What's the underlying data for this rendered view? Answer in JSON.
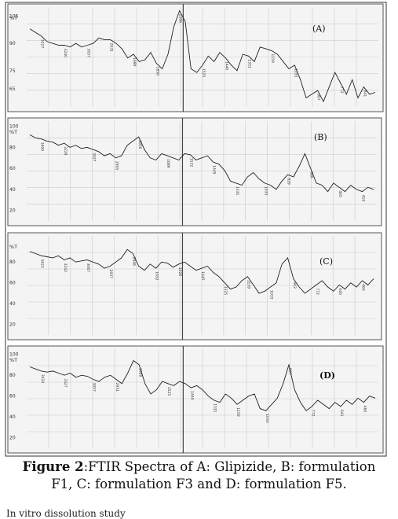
{
  "chart_data": [
    {
      "type": "line",
      "panel_label": "(A)",
      "ylabel": "%T",
      "y_tick_labels": [
        "105",
        "90",
        "75",
        "65"
      ],
      "y_ticks": [
        105,
        90,
        75,
        65
      ],
      "ylim": [
        55,
        110
      ],
      "x": [
        0,
        1,
        2,
        3,
        4,
        5,
        6,
        7,
        8,
        9,
        10,
        11,
        12,
        13,
        14,
        15,
        16,
        17,
        18,
        19,
        20,
        21,
        22,
        23,
        24,
        25,
        26,
        27,
        28,
        29,
        30,
        31,
        32,
        33,
        34,
        35,
        36,
        37,
        38,
        39,
        40,
        41,
        42,
        43,
        44,
        45,
        46,
        47,
        48,
        49,
        50,
        51,
        52,
        53,
        54,
        55,
        56,
        57,
        58,
        59,
        60
      ],
      "values": [
        98,
        96,
        94,
        91,
        90,
        89,
        89,
        88,
        90,
        88,
        89,
        90,
        93,
        92,
        92,
        90,
        87,
        82,
        84,
        80,
        81,
        85,
        79,
        76,
        84,
        99,
        108,
        102,
        76,
        74,
        78,
        83,
        80,
        85,
        82,
        78,
        75,
        84,
        83,
        80,
        88,
        87,
        86,
        84,
        80,
        76,
        78,
        70,
        60,
        62,
        64,
        58,
        66,
        74,
        68,
        62,
        70,
        60,
        66,
        62,
        63
      ],
      "grid": true,
      "peak_labels": [
        "3327",
        "3240",
        "3057",
        "2931",
        "1689",
        "1650",
        "1586",
        "1525",
        "1440",
        "1331",
        "1159",
        "1033",
        "907",
        "772",
        "641"
      ]
    },
    {
      "type": "line",
      "panel_label": "(B)",
      "ylabel": "%T",
      "y_tick_labels": [
        "100",
        "80",
        "60",
        "40",
        "20"
      ],
      "y_ticks": [
        100,
        80,
        60,
        40,
        20
      ],
      "ylim": [
        10,
        105
      ],
      "x": [
        0,
        1,
        2,
        3,
        4,
        5,
        6,
        7,
        8,
        9,
        10,
        11,
        12,
        13,
        14,
        15,
        16,
        17,
        18,
        19,
        20,
        21,
        22,
        23,
        24,
        25,
        26,
        27,
        28,
        29,
        30,
        31,
        32,
        33,
        34,
        35,
        36,
        37,
        38,
        39,
        40,
        41,
        42,
        43,
        44,
        45,
        46,
        47,
        48,
        49,
        50,
        51,
        52,
        53,
        54,
        55,
        56,
        57,
        58,
        59,
        60
      ],
      "values": [
        92,
        89,
        88,
        86,
        85,
        82,
        84,
        80,
        82,
        79,
        80,
        78,
        76,
        72,
        74,
        70,
        72,
        82,
        86,
        90,
        78,
        70,
        68,
        74,
        72,
        70,
        68,
        74,
        73,
        68,
        70,
        72,
        66,
        64,
        58,
        48,
        46,
        44,
        52,
        56,
        50,
        46,
        44,
        40,
        48,
        54,
        52,
        62,
        74,
        60,
        46,
        44,
        38,
        46,
        42,
        38,
        44,
        40,
        38,
        42,
        40
      ],
      "grid": true,
      "peak_labels": [
        "3400",
        "3229",
        "3027",
        "2905",
        "2856",
        "1689",
        "1532",
        "1445",
        "1331",
        "1033",
        "829",
        "686",
        "465",
        "419"
      ]
    },
    {
      "type": "line",
      "panel_label": "(C)",
      "ylabel": "%T",
      "y_tick_labels": [
        "80",
        "60",
        "40",
        "20"
      ],
      "y_ticks": [
        80,
        60,
        40,
        20
      ],
      "ylim": [
        10,
        105
      ],
      "x": [
        0,
        1,
        2,
        3,
        4,
        5,
        6,
        7,
        8,
        9,
        10,
        11,
        12,
        13,
        14,
        15,
        16,
        17,
        18,
        19,
        20,
        21,
        22,
        23,
        24,
        25,
        26,
        27,
        28,
        29,
        30,
        31,
        32,
        33,
        34,
        35,
        36,
        37,
        38,
        39,
        40,
        41,
        42,
        43,
        44,
        45,
        46,
        47,
        48,
        49,
        50,
        51,
        52,
        53,
        54,
        55,
        56,
        57,
        58,
        59,
        60
      ],
      "values": [
        90,
        88,
        86,
        85,
        84,
        86,
        82,
        84,
        80,
        81,
        82,
        80,
        78,
        74,
        76,
        80,
        84,
        92,
        88,
        76,
        72,
        78,
        74,
        80,
        79,
        75,
        78,
        80,
        76,
        72,
        74,
        76,
        70,
        66,
        60,
        54,
        56,
        62,
        66,
        58,
        50,
        52,
        56,
        60,
        78,
        84,
        64,
        56,
        50,
        54,
        58,
        62,
        56,
        52,
        58,
        54,
        60,
        56,
        62,
        58,
        64
      ],
      "grid": true,
      "peak_labels": [
        "3423",
        "3242",
        "3067",
        "2937",
        "2846",
        "1652",
        "1526",
        "1445",
        "1325",
        "1159",
        "1033",
        "902",
        "772",
        "640",
        "460"
      ]
    },
    {
      "type": "line",
      "panel_label": "(D)",
      "ylabel": "%T",
      "y_tick_labels": [
        "100",
        "80",
        "60",
        "40",
        "20"
      ],
      "y_ticks": [
        100,
        80,
        60,
        40,
        20
      ],
      "ylim": [
        10,
        105
      ],
      "x": [
        0,
        1,
        2,
        3,
        4,
        5,
        6,
        7,
        8,
        9,
        10,
        11,
        12,
        13,
        14,
        15,
        16,
        17,
        18,
        19,
        20,
        21,
        22,
        23,
        24,
        25,
        26,
        27,
        28,
        29,
        30,
        31,
        32,
        33,
        34,
        35,
        36,
        37,
        38,
        39,
        40,
        41,
        42,
        43,
        44,
        45,
        46,
        47,
        48,
        49,
        50,
        51,
        52,
        53,
        54,
        55,
        56,
        57,
        58,
        59,
        60
      ],
      "values": [
        88,
        86,
        84,
        83,
        84,
        82,
        80,
        82,
        78,
        80,
        79,
        76,
        74,
        78,
        80,
        76,
        72,
        82,
        94,
        90,
        72,
        62,
        66,
        74,
        72,
        70,
        74,
        72,
        68,
        70,
        66,
        60,
        56,
        54,
        62,
        58,
        52,
        56,
        60,
        62,
        48,
        46,
        52,
        58,
        72,
        90,
        66,
        54,
        46,
        50,
        56,
        52,
        48,
        54,
        50,
        56,
        52,
        58,
        54,
        60,
        58
      ],
      "grid": true,
      "peak_labels": [
        "3424",
        "3327",
        "3057",
        "2931",
        "1689",
        "1525",
        "1440",
        "1331",
        "1159",
        "1033",
        "907",
        "772",
        "641",
        "460"
      ]
    }
  ],
  "caption": {
    "label": "Figure 2",
    "text": ":FTIR Spectra of A: Glipizide, B: formulation F1, C: formulation F3 and D: formulation F5."
  },
  "cutoff_text": "In vitro dissolution study"
}
